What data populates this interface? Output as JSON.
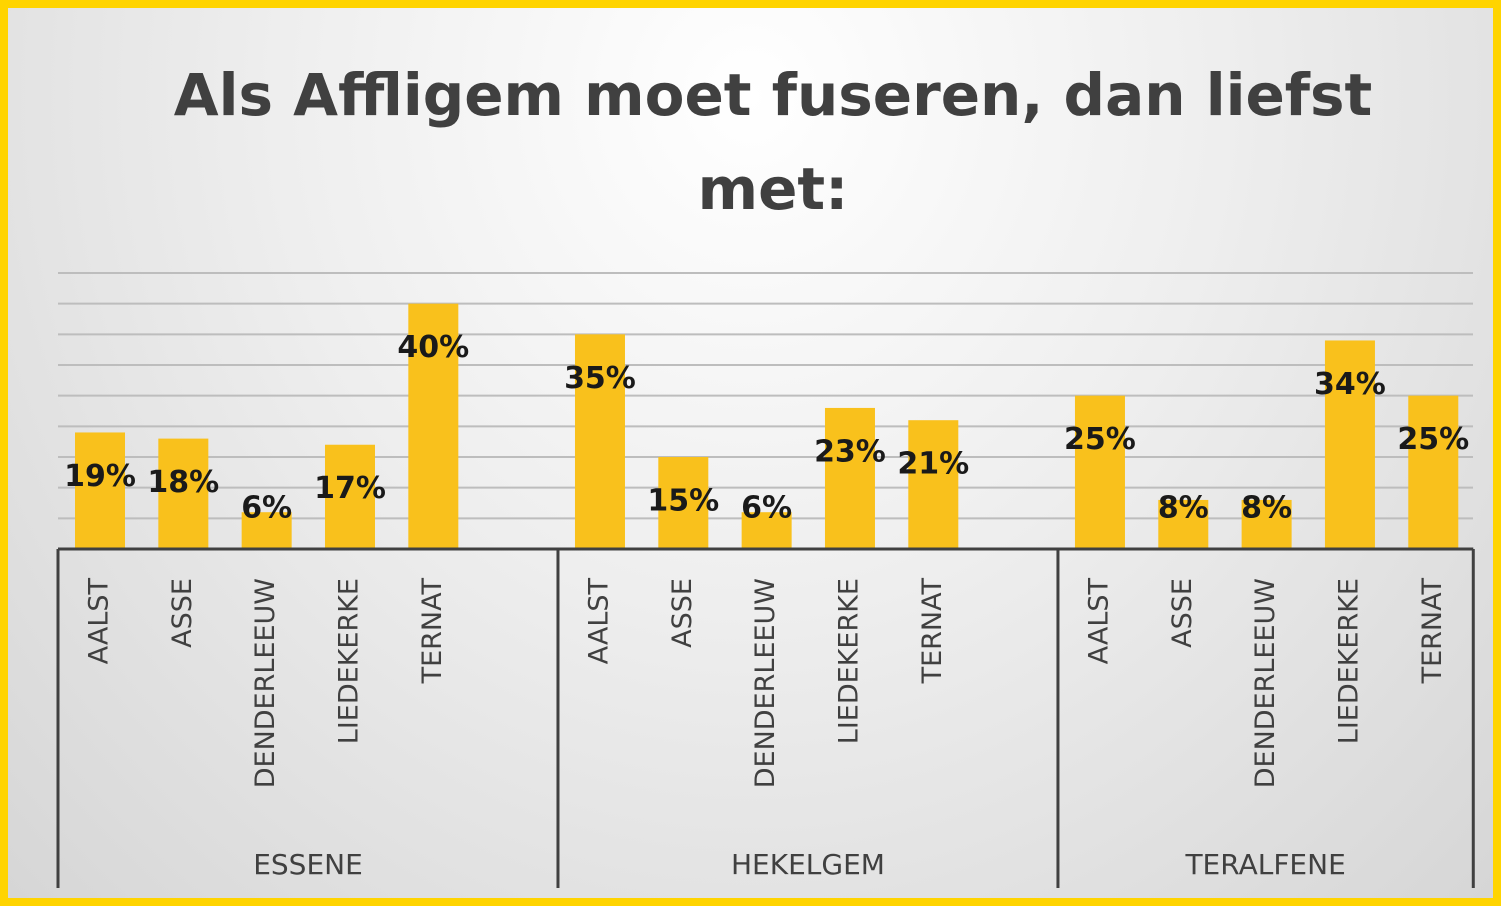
{
  "chart_data": {
    "type": "bar",
    "title": "Als Affligem moet fuseren, dan liefst met:",
    "color": "#f9c11c",
    "ylim": [
      0,
      45
    ],
    "yticks": [
      0,
      5,
      10,
      15,
      20,
      25,
      30,
      35,
      40,
      45
    ],
    "grid": true,
    "groups": [
      {
        "name": "ESSENE",
        "categories": [
          "AALST",
          "ASSE",
          "DENDERLEEUW",
          "LIEDEKERKE",
          "TERNAT"
        ],
        "values": [
          19,
          18,
          6,
          17,
          40
        ],
        "value_labels": [
          "19%",
          "18%",
          "6%",
          "17%",
          "40%"
        ]
      },
      {
        "name": "HEKELGEM",
        "categories": [
          "AALST",
          "ASSE",
          "DENDERLEEUW",
          "LIEDEKERKE",
          "TERNAT"
        ],
        "values": [
          35,
          15,
          6,
          23,
          21
        ],
        "value_labels": [
          "35%",
          "15%",
          "6%",
          "23%",
          "21%"
        ]
      },
      {
        "name": "TERALFENE",
        "categories": [
          "AALST",
          "ASSE",
          "DENDERLEEUW",
          "LIEDEKERKE",
          "TERNAT"
        ],
        "values": [
          25,
          8,
          8,
          34,
          25
        ],
        "value_labels": [
          "25%",
          "8%",
          "8%",
          "34%",
          "25%"
        ]
      }
    ]
  }
}
